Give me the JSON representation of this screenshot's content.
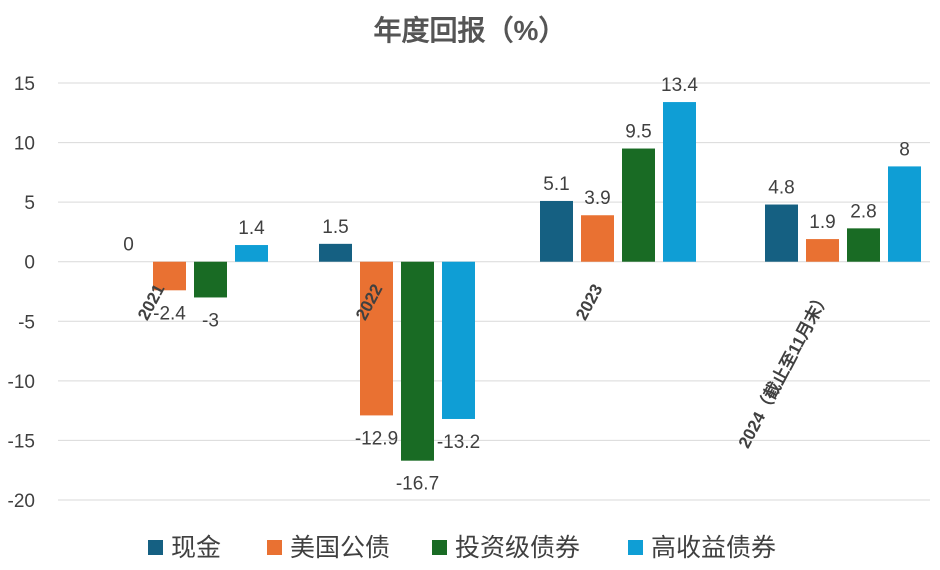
{
  "chart_data": {
    "type": "bar",
    "title": "年度回报（%）",
    "categories": [
      "2021",
      "2022",
      "2023",
      "2024（截止至11月末）"
    ],
    "series": [
      {
        "name": "现金",
        "color": "#156082",
        "values": [
          0,
          1.5,
          5.1,
          4.8
        ]
      },
      {
        "name": "美国公债",
        "color": "#E97132",
        "values": [
          -2.4,
          -12.9,
          3.9,
          1.9
        ]
      },
      {
        "name": "投资级债券",
        "color": "#196B24",
        "values": [
          -3,
          -16.7,
          9.5,
          2.8
        ]
      },
      {
        "name": "高收益债券",
        "color": "#0F9ED5",
        "values": [
          1.4,
          -13.2,
          13.4,
          8
        ]
      }
    ],
    "data_labels": [
      [
        "0",
        "1.5",
        "5.1",
        "4.8"
      ],
      [
        "-2.4",
        "-12.9",
        "3.9",
        "1.9"
      ],
      [
        "-3",
        "-16.7",
        "9.5",
        "2.8"
      ],
      [
        "1.4",
        "-13.2",
        "13.4",
        "8"
      ]
    ],
    "yticks": [
      "15",
      "10",
      "5",
      "0",
      "-5",
      "-10",
      "-15",
      "-20"
    ],
    "ylim": [
      -20,
      15
    ],
    "xlabel": "",
    "ylabel": "",
    "grid": true,
    "legend_position": "bottom"
  }
}
